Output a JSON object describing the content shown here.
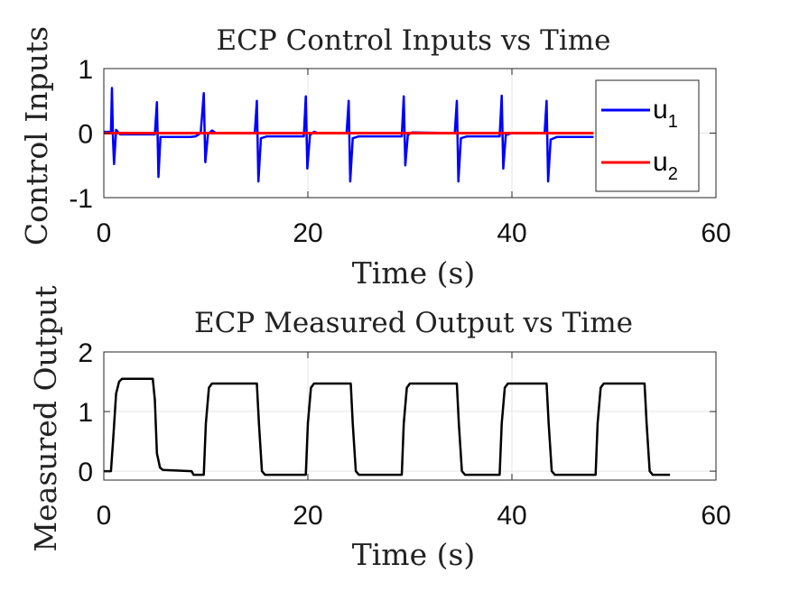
{
  "chart_data": [
    {
      "type": "line",
      "title": "ECP Control Inputs vs Time",
      "xlabel": "Time (s)",
      "ylabel": "Control Inputs",
      "xlim": [
        0,
        60
      ],
      "ylim": [
        -1,
        1
      ],
      "xticks": [
        0,
        20,
        40,
        60
      ],
      "yticks": [
        -1,
        0,
        1
      ],
      "xtick_labels": [
        "0",
        "20",
        "40",
        "60"
      ],
      "ytick_labels": [
        "-1",
        "0",
        "1"
      ],
      "grid": true,
      "legend_position": "top-right",
      "legend": [
        {
          "base": "u",
          "sub": "1"
        },
        {
          "base": "u",
          "sub": "2"
        }
      ],
      "series": [
        {
          "name": "u1",
          "color": "#0000ff",
          "points": [
            [
              0,
              0.02
            ],
            [
              0.7,
              0.02
            ],
            [
              0.8,
              0.7
            ],
            [
              0.9,
              -0.1
            ],
            [
              1.0,
              -0.48
            ],
            [
              1.2,
              0.05
            ],
            [
              1.6,
              -0.02
            ],
            [
              5.0,
              -0.02
            ],
            [
              5.2,
              0.48
            ],
            [
              5.35,
              -0.68
            ],
            [
              5.55,
              -0.06
            ],
            [
              8.0,
              -0.06
            ],
            [
              8.5,
              -0.06
            ],
            [
              9.0,
              -0.05
            ],
            [
              9.5,
              0.0
            ],
            [
              9.8,
              0.62
            ],
            [
              9.95,
              -0.45
            ],
            [
              10.2,
              -0.02
            ],
            [
              10.6,
              0.04
            ],
            [
              11.0,
              0.0
            ],
            [
              14.8,
              0.0
            ],
            [
              15.0,
              0.5
            ],
            [
              15.15,
              -0.75
            ],
            [
              15.4,
              -0.08
            ],
            [
              16.0,
              -0.05
            ],
            [
              19.6,
              -0.05
            ],
            [
              19.8,
              0.57
            ],
            [
              19.95,
              -0.55
            ],
            [
              20.2,
              -0.03
            ],
            [
              20.6,
              0.02
            ],
            [
              21.0,
              0.0
            ],
            [
              23.8,
              0.0
            ],
            [
              24.0,
              0.5
            ],
            [
              24.15,
              -0.75
            ],
            [
              24.4,
              -0.08
            ],
            [
              25.0,
              -0.05
            ],
            [
              29.2,
              -0.05
            ],
            [
              29.4,
              0.57
            ],
            [
              29.55,
              -0.5
            ],
            [
              29.8,
              -0.03
            ],
            [
              30.2,
              0.01
            ],
            [
              34.4,
              0.0
            ],
            [
              34.6,
              0.5
            ],
            [
              34.75,
              -0.75
            ],
            [
              35.0,
              -0.08
            ],
            [
              35.6,
              -0.05
            ],
            [
              38.8,
              -0.05
            ],
            [
              39.0,
              0.58
            ],
            [
              39.15,
              -0.55
            ],
            [
              39.4,
              -0.03
            ],
            [
              40.0,
              0.0
            ],
            [
              43.2,
              0.0
            ],
            [
              43.4,
              0.5
            ],
            [
              43.55,
              -0.75
            ],
            [
              43.8,
              -0.1
            ],
            [
              44.4,
              -0.06
            ],
            [
              48.0,
              -0.06
            ]
          ]
        },
        {
          "name": "u2",
          "color": "#ff0000",
          "points": [
            [
              0,
              0.0
            ],
            [
              48.0,
              0.0
            ]
          ]
        }
      ]
    },
    {
      "type": "line",
      "title": "ECP Measured Output vs Time",
      "xlabel": "Time (s)",
      "ylabel": "Measured Output",
      "xlim": [
        0,
        60
      ],
      "ylim": [
        -0.15,
        2
      ],
      "xticks": [
        0,
        20,
        40,
        60
      ],
      "yticks": [
        0,
        1,
        2
      ],
      "xtick_labels": [
        "0",
        "20",
        "40",
        "60"
      ],
      "ytick_labels": [
        "0",
        "1",
        "2"
      ],
      "grid": true,
      "series": [
        {
          "name": "measured output",
          "color": "#000000",
          "points": [
            [
              0,
              0.0
            ],
            [
              0.7,
              0.0
            ],
            [
              0.9,
              0.5
            ],
            [
              1.2,
              1.3
            ],
            [
              1.5,
              1.5
            ],
            [
              1.8,
              1.55
            ],
            [
              4.8,
              1.55
            ],
            [
              5.0,
              1.2
            ],
            [
              5.2,
              0.3
            ],
            [
              5.5,
              0.06
            ],
            [
              5.8,
              0.02
            ],
            [
              8.6,
              0.0
            ],
            [
              8.8,
              -0.06
            ],
            [
              9.8,
              -0.06
            ],
            [
              10.0,
              0.8
            ],
            [
              10.3,
              1.4
            ],
            [
              10.6,
              1.47
            ],
            [
              15.0,
              1.47
            ],
            [
              15.2,
              0.8
            ],
            [
              15.5,
              0.0
            ],
            [
              15.8,
              -0.06
            ],
            [
              19.8,
              -0.06
            ],
            [
              20.0,
              0.8
            ],
            [
              20.3,
              1.4
            ],
            [
              20.6,
              1.47
            ],
            [
              24.2,
              1.47
            ],
            [
              24.4,
              0.8
            ],
            [
              24.7,
              0.0
            ],
            [
              25.0,
              -0.06
            ],
            [
              29.2,
              -0.06
            ],
            [
              29.4,
              0.8
            ],
            [
              29.7,
              1.4
            ],
            [
              30.0,
              1.47
            ],
            [
              34.6,
              1.47
            ],
            [
              34.8,
              0.8
            ],
            [
              35.1,
              0.0
            ],
            [
              35.4,
              -0.06
            ],
            [
              38.8,
              -0.06
            ],
            [
              39.0,
              0.8
            ],
            [
              39.3,
              1.4
            ],
            [
              39.6,
              1.47
            ],
            [
              43.4,
              1.47
            ],
            [
              43.6,
              0.8
            ],
            [
              43.9,
              0.0
            ],
            [
              44.2,
              -0.06
            ],
            [
              48.2,
              -0.06
            ],
            [
              48.4,
              0.8
            ],
            [
              48.7,
              1.4
            ],
            [
              49.0,
              1.47
            ],
            [
              53.0,
              1.47
            ],
            [
              53.2,
              0.8
            ],
            [
              53.5,
              0.0
            ],
            [
              53.8,
              -0.06
            ],
            [
              55.5,
              -0.06
            ]
          ]
        }
      ]
    }
  ]
}
